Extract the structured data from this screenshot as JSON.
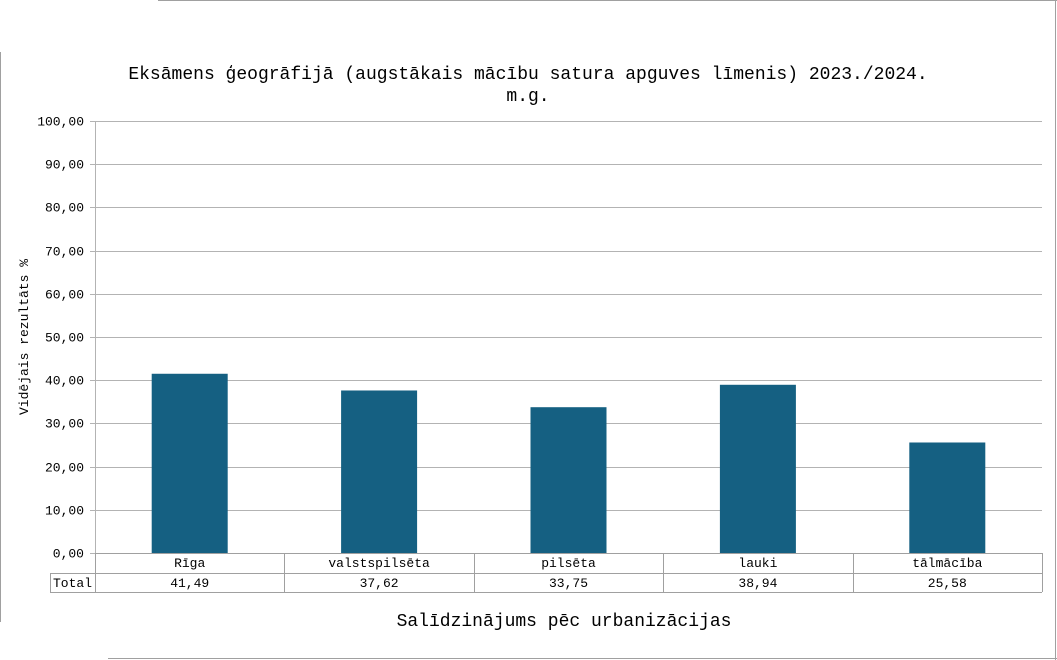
{
  "chart_data": {
    "type": "bar",
    "title_line1": "Eksāmens ģeogrāfijā (augstākais mācību satura apguves līmenis) 2023./2024.",
    "title_line2": "m.g.",
    "xlabel": "Salīdzinājums pēc urbanizācijas",
    "ylabel": "Vidējais rezultāts %",
    "ylim": [
      0,
      100
    ],
    "yticks": [
      0,
      10,
      20,
      30,
      40,
      50,
      60,
      70,
      80,
      90,
      100
    ],
    "ytick_labels": [
      "0,00",
      "10,00",
      "20,00",
      "30,00",
      "40,00",
      "50,00",
      "60,00",
      "70,00",
      "80,00",
      "90,00",
      "100,00"
    ],
    "grid": true,
    "categories": [
      "Rīga",
      "valstspilsēta",
      "pilsēta",
      "lauki",
      "tālmācība"
    ],
    "series": [
      {
        "name": "Total",
        "values": [
          41.49,
          37.62,
          33.75,
          38.94,
          25.58
        ],
        "value_labels": [
          "41,49",
          "37,62",
          "33,75",
          "38,94",
          "25,58"
        ],
        "color": "#156082"
      }
    ],
    "data_table": true
  }
}
